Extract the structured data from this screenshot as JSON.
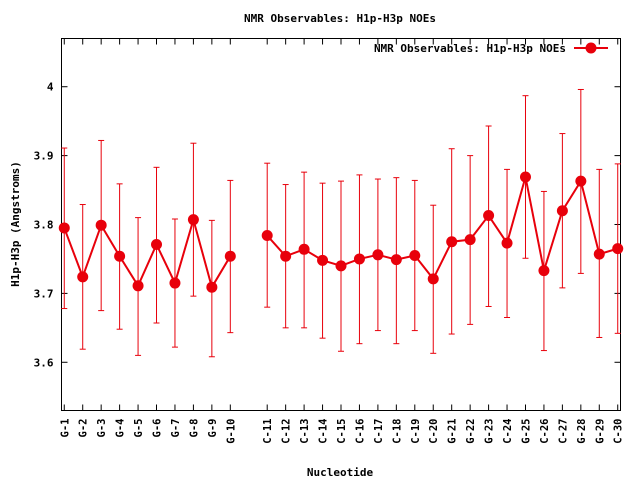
{
  "chart_data": {
    "type": "line",
    "title": "NMR Observables: H1p-H3p NOEs",
    "xlabel": "Nucleotide",
    "ylabel": "H1p-H3p (Angstroms)",
    "ylim": [
      3.53,
      4.07
    ],
    "yticks": [
      "3.6",
      "3.7",
      "3.8",
      "3.9",
      "4"
    ],
    "ytick_values": [
      3.6,
      3.7,
      3.8,
      3.9,
      4.0
    ],
    "xlim": [
      0.85,
      30.15
    ],
    "grid": false,
    "legend": {
      "position": "top-right",
      "label": "NMR Observables: H1p-H3p NOEs"
    },
    "colors": {
      "series": "#e8000b",
      "axis": "#000000"
    },
    "categories": [
      "G-1",
      "G-2",
      "G-3",
      "G-4",
      "G-5",
      "G-6",
      "G-7",
      "G-8",
      "G-9",
      "G-10",
      "C-11",
      "C-12",
      "C-13",
      "C-14",
      "C-15",
      "C-16",
      "C-17",
      "C-18",
      "C-19",
      "C-20",
      "G-21",
      "G-22",
      "G-23",
      "C-24",
      "G-25",
      "C-26",
      "C-27",
      "G-28",
      "G-29",
      "C-30"
    ],
    "x": [
      1,
      2,
      3,
      4,
      5,
      6,
      7,
      8,
      9,
      10,
      12,
      13,
      14,
      15,
      16,
      17,
      18,
      19,
      20,
      21,
      22,
      23,
      24,
      25,
      26,
      27,
      28,
      29,
      30,
      31
    ],
    "series": [
      {
        "name": "NMR Observables: H1p-H3p NOEs",
        "segments": [
          [
            0,
            9
          ],
          [
            10,
            29
          ]
        ],
        "values": [
          3.795,
          3.724,
          3.799,
          3.754,
          3.711,
          3.771,
          3.715,
          3.807,
          3.709,
          3.754,
          3.784,
          3.754,
          3.764,
          3.748,
          3.74,
          3.75,
          3.756,
          3.749,
          3.755,
          3.721,
          3.775,
          3.778,
          3.813,
          3.773,
          3.869,
          3.733,
          3.82,
          3.863,
          3.757,
          3.765
        ],
        "err_low": [
          3.678,
          3.619,
          3.675,
          3.648,
          3.61,
          3.657,
          3.622,
          3.696,
          3.608,
          3.643,
          3.68,
          3.65,
          3.65,
          3.635,
          3.616,
          3.627,
          3.646,
          3.627,
          3.646,
          3.613,
          3.641,
          3.655,
          3.681,
          3.665,
          3.751,
          3.617,
          3.708,
          3.729,
          3.636,
          3.642
        ],
        "err_high": [
          3.911,
          3.829,
          3.922,
          3.859,
          3.81,
          3.883,
          3.808,
          3.918,
          3.806,
          3.864,
          3.889,
          3.858,
          3.876,
          3.86,
          3.863,
          3.872,
          3.866,
          3.868,
          3.864,
          3.828,
          3.91,
          3.9,
          3.943,
          3.88,
          3.987,
          3.848,
          3.932,
          3.996,
          3.88,
          3.888
        ]
      }
    ]
  }
}
